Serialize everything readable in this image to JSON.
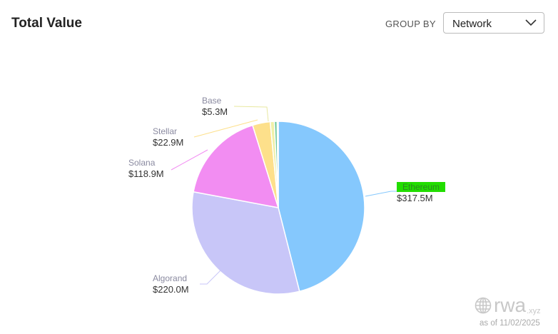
{
  "header": {
    "title": "Total Value",
    "group_by_label": "GROUP BY",
    "group_by_value": "Network"
  },
  "chart_data": {
    "type": "pie",
    "title": "Total Value",
    "start": "top",
    "direction": "clockwise",
    "slices": [
      {
        "label": "Ethereum",
        "value": 317.5,
        "display": "$317.5M",
        "color": "#85c8fd"
      },
      {
        "label": "Algorand",
        "value": 220.0,
        "display": "$220.0M",
        "color": "#c8c6f8"
      },
      {
        "label": "Solana",
        "value": 118.9,
        "display": "$118.9M",
        "color": "#f28df2"
      },
      {
        "label": "Stellar",
        "value": 22.9,
        "display": "$22.9M",
        "color": "#fde08b"
      },
      {
        "label": "Base",
        "value": 5.3,
        "display": "$5.3M",
        "color": "#f0f0a8"
      },
      {
        "label": "",
        "value": 3.5,
        "display": "",
        "color": "#6fc79a"
      },
      {
        "label": "",
        "value": 1.5,
        "display": "",
        "color": "#7fb8e6"
      }
    ]
  },
  "footer": {
    "brand": "rwa",
    "brand_suffix": ".xyz",
    "as_of": "as of 11/02/2025"
  }
}
